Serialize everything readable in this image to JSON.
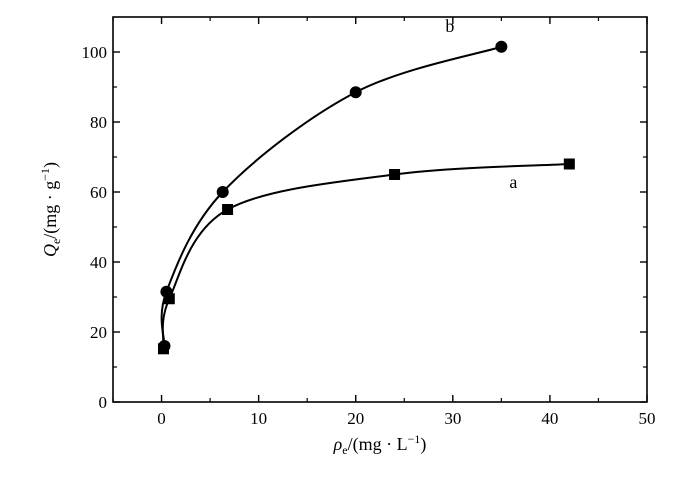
{
  "chart_data": {
    "type": "scatter",
    "xlim": [
      -5,
      50
    ],
    "ylim": [
      0,
      110
    ],
    "x_ticks": [
      0,
      10,
      20,
      30,
      40,
      50
    ],
    "y_ticks": [
      0,
      20,
      40,
      60,
      80,
      100
    ],
    "xlabel": {
      "symbol": "ρ",
      "subscript": "e",
      "units": "/(mg · L",
      "exponent": "−1",
      "close": ")"
    },
    "ylabel": {
      "symbol": "Q",
      "subscript": "e",
      "units": "/(mg · g",
      "exponent": "−1",
      "close": ")"
    },
    "grid": false,
    "legend": "none",
    "series": [
      {
        "name": "a",
        "marker": "square",
        "points": [
          {
            "x": 0.2,
            "y": 15.2
          },
          {
            "x": 0.8,
            "y": 29.5
          },
          {
            "x": 6.8,
            "y": 55.0
          },
          {
            "x": 24.0,
            "y": 65.0
          },
          {
            "x": 42.0,
            "y": 68.0
          }
        ]
      },
      {
        "name": "b",
        "marker": "circle",
        "points": [
          {
            "x": 0.3,
            "y": 16.0
          },
          {
            "x": 0.5,
            "y": 31.5
          },
          {
            "x": 6.3,
            "y": 60.0
          },
          {
            "x": 20.0,
            "y": 88.5
          },
          {
            "x": 35.0,
            "y": 101.5
          }
        ]
      }
    ]
  }
}
